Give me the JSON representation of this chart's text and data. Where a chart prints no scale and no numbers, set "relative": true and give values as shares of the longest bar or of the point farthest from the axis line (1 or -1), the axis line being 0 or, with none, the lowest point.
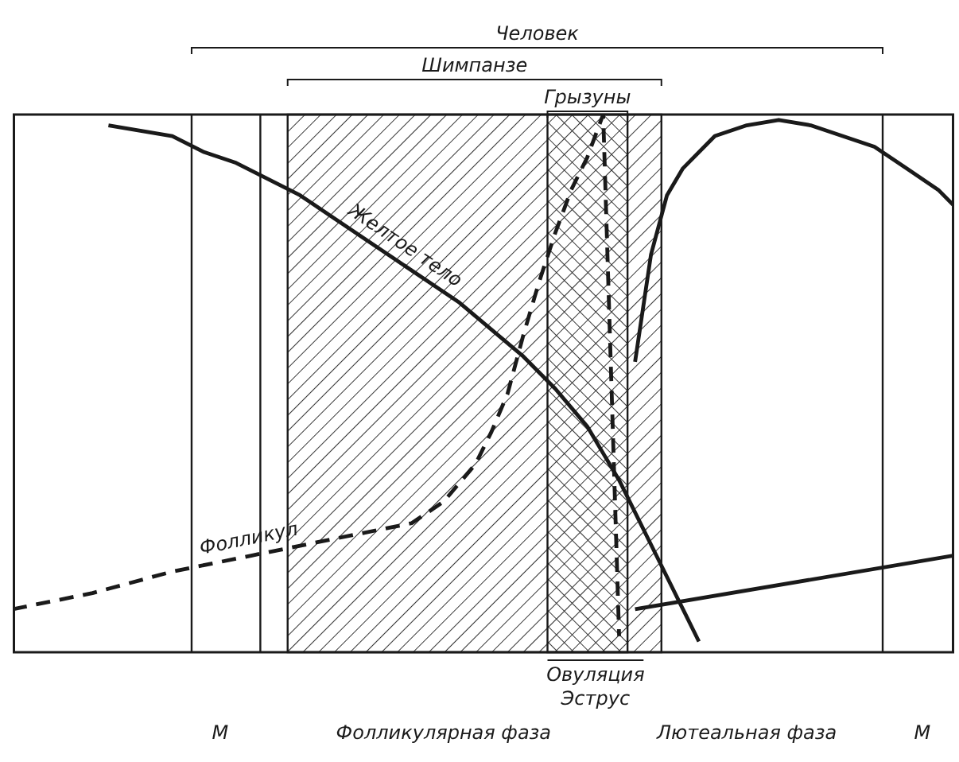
{
  "chart_data": {
    "type": "line",
    "relative": true,
    "categories": [
      null,
      null,
      null,
      null,
      null,
      null,
      null,
      null,
      null,
      null,
      null,
      null,
      null,
      "М",
      null,
      null,
      null,
      null,
      null,
      null,
      null,
      null,
      null,
      null,
      null,
      null,
      null,
      "Фолликулярная фаза",
      null,
      null,
      null,
      null,
      null,
      null,
      null,
      null,
      null,
      null,
      null,
      null,
      null,
      null,
      null,
      null,
      null,
      null,
      "Лютеальная фаза",
      null,
      null,
      null,
      null,
      null,
      null,
      null,
      null,
      null,
      null,
      "М",
      null,
      null
    ],
    "series": [
      {
        "name": "Желтое тело",
        "color": "#1a1a1a",
        "line_style": "solid",
        "values": [
          null,
          null,
          null,
          null,
          null,
          null,
          0.98,
          null,
          0.97,
          null,
          0.96,
          null,
          0.93,
          null,
          0.91,
          null,
          0.88,
          null,
          0.85,
          null,
          0.81,
          null,
          0.77,
          null,
          0.73,
          null,
          0.69,
          null,
          0.65,
          null,
          0.6,
          null,
          0.55,
          null,
          0.49,
          null,
          0.42,
          null,
          0.32,
          null,
          0.2,
          null,
          0.08,
          0.02,
          null,
          null,
          null,
          null,
          null,
          null,
          null,
          null,
          null,
          null,
          null,
          null,
          null,
          null,
          null,
          null
        ]
      },
      {
        "name": "Фолликул",
        "color": "#1a1a1a",
        "line_style": "dashed",
        "values": [
          0.08,
          null,
          null,
          null,
          null,
          0.11,
          null,
          null,
          null,
          null,
          0.15,
          null,
          null,
          null,
          null,
          0.18,
          null,
          null,
          null,
          null,
          0.21,
          null,
          null,
          null,
          null,
          0.24,
          null,
          0.28,
          null,
          0.35,
          0.41,
          0.48,
          0.59,
          0.69,
          0.78,
          0.86,
          0.92,
          1,
          0.03,
          null,
          null,
          null,
          null,
          null,
          null,
          null,
          null,
          null,
          null,
          null,
          null,
          null,
          null,
          null,
          null,
          null,
          null,
          null,
          null,
          null
        ]
      },
      {
        "color": "#1a1a1a",
        "line_style": "solid",
        "values": [
          null,
          null,
          null,
          null,
          null,
          null,
          null,
          null,
          null,
          null,
          null,
          null,
          null,
          null,
          null,
          null,
          null,
          null,
          null,
          null,
          null,
          null,
          null,
          null,
          null,
          null,
          null,
          null,
          null,
          null,
          null,
          null,
          null,
          null,
          null,
          null,
          null,
          null,
          null,
          0.54,
          0.74,
          0.85,
          0.9,
          null,
          0.96,
          null,
          0.98,
          null,
          0.99,
          null,
          0.98,
          null,
          0.96,
          null,
          0.94,
          null,
          0.9,
          null,
          0.86,
          0.83
        ]
      },
      {
        "color": "#1a1a1a",
        "line_style": "solid",
        "values": [
          null,
          null,
          null,
          null,
          null,
          null,
          null,
          null,
          null,
          null,
          null,
          null,
          null,
          null,
          null,
          null,
          null,
          null,
          null,
          null,
          null,
          null,
          null,
          null,
          null,
          null,
          null,
          null,
          null,
          null,
          null,
          null,
          null,
          null,
          null,
          null,
          null,
          null,
          null,
          0.08,
          null,
          null,
          null,
          null,
          null,
          null,
          null,
          null,
          null,
          null,
          null,
          null,
          null,
          null,
          null,
          null,
          null,
          null,
          null,
          0.18
        ]
      }
    ],
    "annotations": [
      "Человек",
      "Шимпанзе",
      "Грызуны",
      "Овуляция",
      "Эструс"
    ],
    "grid": false,
    "legend": false
  }
}
